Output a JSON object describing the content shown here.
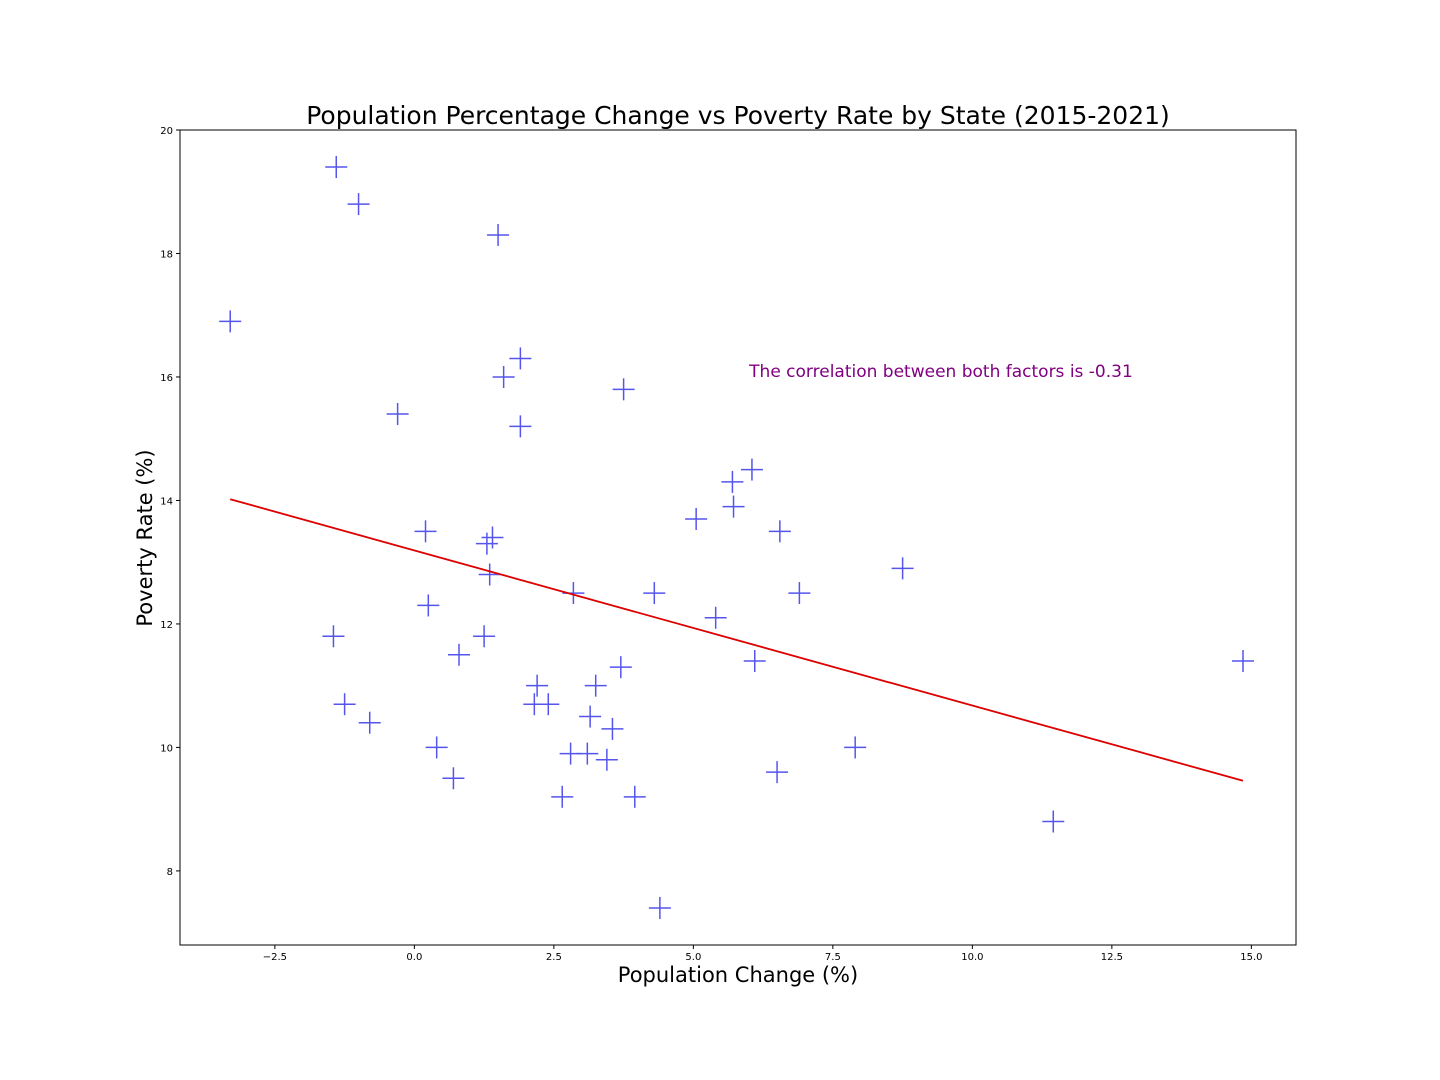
{
  "chart_data": {
    "type": "scatter",
    "title": "Population Percentage Change vs Poverty Rate by State (2015-2021)",
    "xlabel": "Population Change (%)",
    "ylabel": "Poverty Rate (%)",
    "xlim": [
      -4.2,
      15.8
    ],
    "ylim": [
      6.8,
      20.0
    ],
    "x_ticks": [
      -2.5,
      0.0,
      2.5,
      5.0,
      7.5,
      10.0,
      12.5,
      15.0
    ],
    "x_tick_labels": [
      "−2.5",
      "0.0",
      "2.5",
      "5.0",
      "7.5",
      "10.0",
      "12.5",
      "15.0"
    ],
    "y_ticks": [
      8,
      10,
      12,
      14,
      16,
      18,
      20
    ],
    "y_tick_labels": [
      "8",
      "10",
      "12",
      "14",
      "16",
      "18",
      "20"
    ],
    "grid": false,
    "marker": "+",
    "marker_color": "#5555ee",
    "regression_color": "#dd0000",
    "annotation_color": "#800080",
    "annotation": {
      "text": "The correlation between both factors is -0.31",
      "x": 6.0,
      "y": 16.0
    },
    "regression_line": {
      "x": [
        -3.3,
        14.85
      ],
      "y": [
        14.02,
        9.46
      ]
    },
    "points": [
      {
        "x": -3.3,
        "y": 16.9
      },
      {
        "x": -1.4,
        "y": 19.4
      },
      {
        "x": -1.0,
        "y": 18.8
      },
      {
        "x": -1.45,
        "y": 11.8
      },
      {
        "x": -1.25,
        "y": 10.7
      },
      {
        "x": -0.8,
        "y": 10.4
      },
      {
        "x": -0.3,
        "y": 15.4
      },
      {
        "x": 0.2,
        "y": 13.5
      },
      {
        "x": 0.25,
        "y": 12.3
      },
      {
        "x": 0.4,
        "y": 10.0
      },
      {
        "x": 0.7,
        "y": 9.5
      },
      {
        "x": 0.8,
        "y": 11.5
      },
      {
        "x": 1.25,
        "y": 11.8
      },
      {
        "x": 1.3,
        "y": 13.3
      },
      {
        "x": 1.4,
        "y": 13.4
      },
      {
        "x": 1.35,
        "y": 12.8
      },
      {
        "x": 1.5,
        "y": 18.3
      },
      {
        "x": 1.6,
        "y": 16.0
      },
      {
        "x": 1.9,
        "y": 16.3
      },
      {
        "x": 1.9,
        "y": 15.2
      },
      {
        "x": 2.15,
        "y": 10.7
      },
      {
        "x": 2.2,
        "y": 11.0
      },
      {
        "x": 2.4,
        "y": 10.7
      },
      {
        "x": 2.65,
        "y": 9.2
      },
      {
        "x": 2.8,
        "y": 9.9
      },
      {
        "x": 2.85,
        "y": 12.5
      },
      {
        "x": 3.1,
        "y": 9.9
      },
      {
        "x": 3.15,
        "y": 10.5
      },
      {
        "x": 3.25,
        "y": 11.0
      },
      {
        "x": 3.45,
        "y": 9.8
      },
      {
        "x": 3.55,
        "y": 10.3
      },
      {
        "x": 3.7,
        "y": 11.3
      },
      {
        "x": 3.75,
        "y": 15.8
      },
      {
        "x": 3.95,
        "y": 9.2
      },
      {
        "x": 4.3,
        "y": 12.5
      },
      {
        "x": 4.4,
        "y": 7.4
      },
      {
        "x": 5.05,
        "y": 13.7
      },
      {
        "x": 5.4,
        "y": 12.1
      },
      {
        "x": 5.7,
        "y": 14.3
      },
      {
        "x": 5.72,
        "y": 13.9
      },
      {
        "x": 6.05,
        "y": 14.5
      },
      {
        "x": 6.1,
        "y": 11.4
      },
      {
        "x": 6.5,
        "y": 9.6
      },
      {
        "x": 6.55,
        "y": 13.5
      },
      {
        "x": 6.9,
        "y": 12.5
      },
      {
        "x": 7.9,
        "y": 10.0
      },
      {
        "x": 8.75,
        "y": 12.9
      },
      {
        "x": 11.45,
        "y": 8.8
      },
      {
        "x": 14.85,
        "y": 11.4
      }
    ]
  }
}
